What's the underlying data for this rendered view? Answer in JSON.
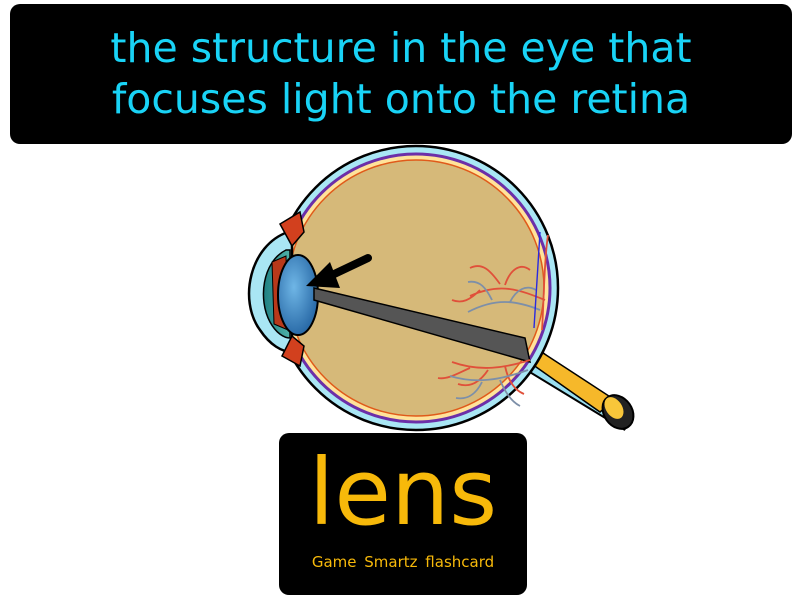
{
  "definition": {
    "line1": "the structure in the eye that",
    "line2": "focuses light onto the retina"
  },
  "term": "lens",
  "brand": "Game Smartz flashcard",
  "illustration": {
    "subject": "eye-cross-section",
    "highlighted_part": "lens",
    "pointer": "arrow-icon"
  },
  "colors": {
    "background": "#ffffff",
    "panel": "#000000",
    "definition_text": "#19d3f6",
    "term_text": "#f7b90a"
  }
}
